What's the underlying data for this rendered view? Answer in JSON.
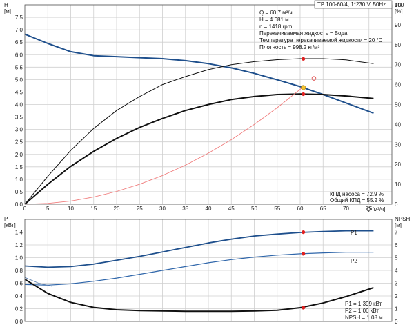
{
  "header": {
    "title": "TP 100-60/4, 1*230 V, 50Hz"
  },
  "chart_data": [
    {
      "type": "line",
      "panel": "performance",
      "xlabel": "Q [м³/ч]",
      "ylabel": "H",
      "ylabel_unit": "[м]",
      "y2label": "eta",
      "y2label_unit": "[%]",
      "xlim": [
        0,
        80
      ],
      "ylim": [
        0,
        8
      ],
      "y2lim": [
        0,
        100
      ],
      "x_ticks": [
        "0",
        "5",
        "10",
        "15",
        "20",
        "25",
        "30",
        "35",
        "40",
        "45",
        "50",
        "55",
        "60",
        "65",
        "70",
        "75"
      ],
      "y_ticks": [
        "0.0",
        "0.5",
        "1.0",
        "1.5",
        "2.0",
        "2.5",
        "3.0",
        "3.5",
        "4.0",
        "4.5",
        "5.0",
        "5.5",
        "6.0",
        "6.5",
        "7.0",
        "7.5"
      ],
      "y2_ticks": [
        "0",
        "10",
        "20",
        "30",
        "40",
        "50",
        "60",
        "70",
        "80",
        "90",
        "100"
      ],
      "grid": true,
      "series": [
        {
          "role": "head-curve",
          "axis": "y",
          "color": "#1e4f8c",
          "x": [
            0,
            5,
            10,
            15,
            20,
            25,
            30,
            35,
            40,
            45,
            50,
            55,
            60,
            65,
            70,
            76
          ],
          "y": [
            6.82,
            6.45,
            6.12,
            5.96,
            5.92,
            5.88,
            5.84,
            5.76,
            5.64,
            5.47,
            5.25,
            4.99,
            4.72,
            4.4,
            4.06,
            3.65
          ]
        },
        {
          "role": "eta-thin-curve",
          "axis": "y2",
          "color": "#111111",
          "x": [
            0,
            5,
            10,
            15,
            20,
            25,
            30,
            35,
            40,
            45,
            50,
            55,
            60,
            65,
            70,
            76
          ],
          "y": [
            0,
            14,
            27,
            38,
            47,
            54,
            60,
            64,
            67.5,
            70,
            71.5,
            72.5,
            73,
            73,
            72.4,
            70.5
          ]
        },
        {
          "role": "eta-thick-curve",
          "axis": "y2",
          "color": "#111111",
          "x": [
            0,
            5,
            10,
            15,
            20,
            25,
            30,
            35,
            40,
            45,
            50,
            55,
            60,
            65,
            70,
            76
          ],
          "y": [
            0,
            10,
            19,
            26.5,
            33,
            38.5,
            43,
            47,
            50,
            52.5,
            54,
            55,
            55.3,
            55,
            54.3,
            53
          ]
        },
        {
          "role": "system-curve",
          "axis": "y",
          "color": "#f07b7b",
          "x": [
            0,
            5,
            10,
            15,
            20,
            25,
            30,
            35,
            40,
            45,
            50,
            55,
            60,
            60.7
          ],
          "y": [
            0,
            0.032,
            0.128,
            0.288,
            0.512,
            0.8,
            1.152,
            1.568,
            2.048,
            2.592,
            3.2,
            3.872,
            4.608,
            4.716
          ]
        }
      ],
      "points": [
        {
          "role": "duty-point",
          "axis": "y",
          "x": 60.7,
          "y": 4.681,
          "color": "#f2c230"
        },
        {
          "role": "eta-pump-point",
          "axis": "y2",
          "x": 60.7,
          "y": 72.9,
          "color": "#e02020"
        },
        {
          "role": "eta-total-point",
          "axis": "y2",
          "x": 60.7,
          "y": 55.2,
          "color": "#e02020"
        },
        {
          "role": "open-marker",
          "axis": "y",
          "x": 63,
          "y": 5.05,
          "color": "#e05050"
        }
      ],
      "info_lines": [
        "Q = 60.7 м³/ч",
        "H = 4.681 м",
        "n = 1418 rpm",
        "Перекачиваемая жидкость = Вода",
        "Температура перекачиваемой жидкости = 20 °C",
        "Плотность = 998.2 кг/м³"
      ],
      "eff_lines": [
        "КПД насоса = 72.9 %",
        "Общий КПД = 55.2 %"
      ]
    },
    {
      "type": "line",
      "panel": "power-npsh",
      "ylabel": "P",
      "ylabel_unit": "[кВт]",
      "y2label": "NPSH",
      "y2label_unit": "[м]",
      "xlim": [
        0,
        80
      ],
      "ylim": [
        0,
        1.6
      ],
      "y2lim": [
        0,
        8
      ],
      "y_ticks": [
        "0.0",
        "0.2",
        "0.4",
        "0.6",
        "0.8",
        "1.0",
        "1.2",
        "1.4"
      ],
      "y2_ticks": [
        "0",
        "1",
        "2",
        "3",
        "4",
        "5",
        "6",
        "7"
      ],
      "grid": true,
      "series": [
        {
          "name": "P1",
          "axis": "y",
          "color": "#1e4f8c",
          "x": [
            0,
            5,
            10,
            15,
            20,
            25,
            30,
            35,
            40,
            45,
            50,
            55,
            60,
            65,
            70,
            76
          ],
          "y": [
            0.87,
            0.85,
            0.86,
            0.9,
            0.96,
            1.02,
            1.09,
            1.16,
            1.23,
            1.29,
            1.34,
            1.37,
            1.395,
            1.41,
            1.42,
            1.42
          ]
        },
        {
          "name": "P2",
          "axis": "y",
          "color": "#2f66aa",
          "x": [
            0,
            5,
            10,
            15,
            20,
            25,
            30,
            35,
            40,
            45,
            50,
            55,
            60,
            65,
            70,
            76
          ],
          "y": [
            0.58,
            0.57,
            0.59,
            0.63,
            0.68,
            0.74,
            0.8,
            0.86,
            0.92,
            0.97,
            1.01,
            1.04,
            1.06,
            1.075,
            1.085,
            1.085
          ]
        },
        {
          "role": "npsh-curve",
          "axis": "y2",
          "color": "#111111",
          "x": [
            0,
            5,
            10,
            15,
            20,
            25,
            30,
            35,
            40,
            45,
            50,
            55,
            60,
            65,
            70,
            76
          ],
          "y": [
            3.3,
            2.2,
            1.5,
            1.1,
            0.92,
            0.85,
            0.82,
            0.8,
            0.8,
            0.8,
            0.82,
            0.88,
            1.08,
            1.45,
            1.95,
            2.65
          ]
        },
        {
          "role": "p1-thin-curve",
          "axis": "y",
          "color": "#5a7fb0",
          "x": [
            0,
            3,
            6
          ],
          "y": [
            0.69,
            0.6,
            0.55
          ]
        }
      ],
      "points": [
        {
          "role": "p1-point",
          "axis": "y",
          "x": 60.7,
          "y": 1.399,
          "color": "#e02020"
        },
        {
          "role": "p2-point",
          "axis": "y",
          "x": 60.7,
          "y": 1.06,
          "color": "#e02020"
        },
        {
          "role": "npsh-point",
          "axis": "y2",
          "x": 60.7,
          "y": 1.08,
          "color": "#e02020"
        }
      ],
      "info_lines": [
        "P1 = 1.399 кВт",
        "P2 = 1.06 кВт",
        "NPSH = 1.08 м"
      ]
    }
  ]
}
